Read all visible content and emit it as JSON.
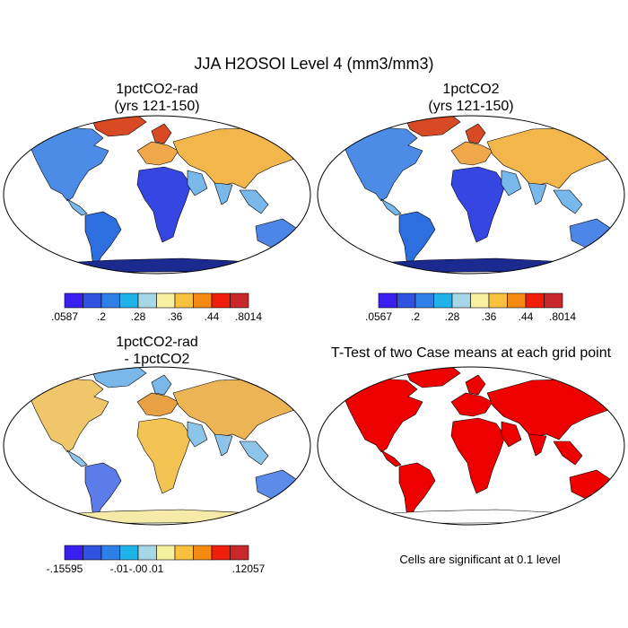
{
  "title": "JJA H2OSOI Level 4 (mm3/mm3)",
  "panels": [
    {
      "id": "top-left",
      "title_line1": "1pctCO2-rad",
      "title_line2": "(yrs 121-150)",
      "colorbar": {
        "colors": [
          "#3b1ff0",
          "#2f52e0",
          "#2f7fe8",
          "#1fb3ea",
          "#a7d7e6",
          "#f7f09e",
          "#f8c23e",
          "#f58a12",
          "#ef1e0a",
          "#c8282a"
        ],
        "labels": [
          ".0587",
          ".2",
          ".28",
          ".36",
          ".44",
          ".8014"
        ]
      }
    },
    {
      "id": "top-right",
      "title_line1": "1pctCO2",
      "title_line2": "(yrs 121-150)",
      "colorbar": {
        "colors": [
          "#3b1ff0",
          "#2f52e0",
          "#2f7fe8",
          "#1fb3ea",
          "#a7d7e6",
          "#f7f09e",
          "#f8c23e",
          "#f58a12",
          "#ef1e0a",
          "#c8282a"
        ],
        "labels": [
          ".0567",
          ".2",
          ".28",
          ".36",
          ".44",
          ".8014"
        ]
      }
    },
    {
      "id": "bottom-left",
      "title_line1": "1pctCO2-rad",
      "title_line2": "- 1pctCO2",
      "colorbar": {
        "colors": [
          "#3b1ff0",
          "#2f52e0",
          "#2f7fe8",
          "#1fb3ea",
          "#a7d7e6",
          "#f7f09e",
          "#f8c23e",
          "#f58a12",
          "#ef1e0a",
          "#c8282a"
        ],
        "labels": [
          "-.15595",
          "-.01",
          "-.00",
          ".01",
          ".12057"
        ]
      }
    },
    {
      "id": "bottom-right",
      "title_line1": "T-Test of two Case means at each grid point",
      "note": "Cells are significant at 0.1 level",
      "significance_color": "#ee0000"
    }
  ]
}
